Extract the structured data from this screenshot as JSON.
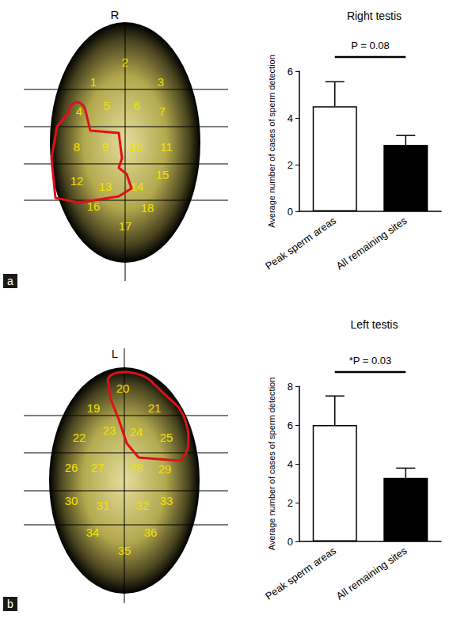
{
  "diagrams": [
    {
      "panel": "a",
      "side": "R",
      "sites": [
        1,
        2,
        3,
        4,
        5,
        6,
        7,
        8,
        9,
        10,
        11,
        12,
        13,
        14,
        15,
        16,
        17,
        18
      ]
    },
    {
      "panel": "b",
      "side": "L",
      "sites": [
        19,
        20,
        21,
        22,
        23,
        24,
        25,
        26,
        27,
        28,
        29,
        30,
        31,
        32,
        33,
        34,
        35,
        36
      ]
    }
  ],
  "chart_data": [
    {
      "type": "bar",
      "title": "Right testis",
      "categories": [
        "Peak sperm areas",
        "All remaining sites"
      ],
      "values": [
        4.5,
        2.85
      ],
      "errors": [
        1.05,
        0.4
      ],
      "colors": [
        "#ffffff",
        "#000000"
      ],
      "ylabel": "Average number of cases of sperm detection",
      "ylim": [
        0,
        6
      ],
      "yticks": [
        0,
        2,
        4,
        6
      ],
      "grid": false,
      "annotation": "P = 0.08"
    },
    {
      "type": "bar",
      "title": "Left testis",
      "categories": [
        "Peak sperm areas",
        "All remaining sites"
      ],
      "values": [
        6.0,
        3.28
      ],
      "errors": [
        1.5,
        0.5
      ],
      "colors": [
        "#ffffff",
        "#000000"
      ],
      "ylabel": "Average number of cases of sperm detection",
      "ylim": [
        0,
        8
      ],
      "yticks": [
        0,
        2,
        4,
        6,
        8
      ],
      "grid": false,
      "annotation": "*P = 0.03"
    }
  ]
}
